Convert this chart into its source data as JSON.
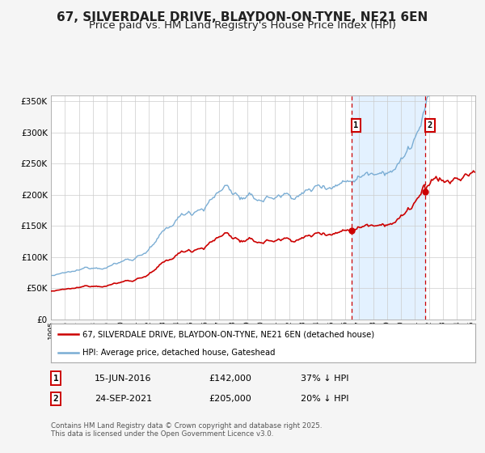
{
  "title": "67, SILVERDALE DRIVE, BLAYDON-ON-TYNE, NE21 6EN",
  "subtitle": "Price paid vs. HM Land Registry's House Price Index (HPI)",
  "legend_label_red": "67, SILVERDALE DRIVE, BLAYDON-ON-TYNE, NE21 6EN (detached house)",
  "legend_label_blue": "HPI: Average price, detached house, Gateshead",
  "sale1_date": "15-JUN-2016",
  "sale1_price": 142000,
  "sale1_label": "37% ↓ HPI",
  "sale2_date": "24-SEP-2021",
  "sale2_price": 205000,
  "sale2_label": "20% ↓ HPI",
  "footnote": "Contains HM Land Registry data © Crown copyright and database right 2025.\nThis data is licensed under the Open Government Licence v3.0.",
  "vline1_x": 2016.46,
  "vline2_x": 2021.73,
  "ylim": [
    0,
    360000
  ],
  "yticks": [
    0,
    50000,
    100000,
    150000,
    200000,
    250000,
    300000,
    350000
  ],
  "xlim_left": 1995.0,
  "xlim_right": 2025.3,
  "background_color": "#f5f5f5",
  "plot_bg_color": "#ffffff",
  "grid_color": "#cccccc",
  "blue_line_color": "#7aadd4",
  "red_line_color": "#cc0000",
  "shade_color": "#ddeeff",
  "title_color": "#222222",
  "title_fontsize": 11,
  "subtitle_fontsize": 9.5
}
